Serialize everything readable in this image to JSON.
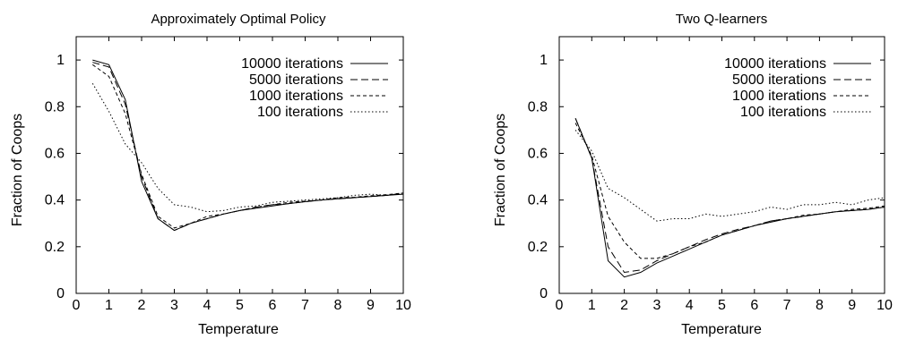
{
  "chart_data": [
    {
      "type": "line",
      "title": "Approximately Optimal Policy",
      "xlabel": "Temperature",
      "ylabel": "Fraction of Coops",
      "xlim": [
        0,
        10
      ],
      "ylim": [
        0,
        1.1
      ],
      "xticks": [
        "0",
        "1",
        "2",
        "3",
        "4",
        "5",
        "6",
        "7",
        "8",
        "9",
        "10"
      ],
      "yticks": [
        "0",
        "0.2",
        "0.4",
        "0.6",
        "0.8",
        "1"
      ],
      "grid": false,
      "legend_position": "top-right",
      "series": [
        {
          "name": "10000 iterations",
          "dash": "solid",
          "x": [
            0.5,
            1,
            1.5,
            2,
            2.5,
            3,
            3.5,
            4,
            4.5,
            5,
            5.5,
            6,
            6.5,
            7,
            7.5,
            8,
            8.5,
            9,
            9.5,
            10
          ],
          "y": [
            1.0,
            0.98,
            0.83,
            0.48,
            0.32,
            0.27,
            0.3,
            0.32,
            0.34,
            0.355,
            0.365,
            0.375,
            0.385,
            0.393,
            0.4,
            0.405,
            0.41,
            0.415,
            0.42,
            0.425
          ]
        },
        {
          "name": "5000 iterations",
          "dash": "long-dash",
          "x": [
            0.5,
            1,
            1.5,
            2,
            2.5,
            3,
            3.5,
            4,
            4.5,
            5,
            5.5,
            6,
            6.5,
            7,
            7.5,
            8,
            8.5,
            9,
            9.5,
            10
          ],
          "y": [
            0.99,
            0.97,
            0.81,
            0.5,
            0.32,
            0.27,
            0.3,
            0.32,
            0.34,
            0.355,
            0.37,
            0.38,
            0.385,
            0.393,
            0.4,
            0.405,
            0.41,
            0.415,
            0.42,
            0.428
          ]
        },
        {
          "name": "1000 iterations",
          "dash": "short-dash",
          "x": [
            0.5,
            1,
            1.5,
            2,
            2.5,
            3,
            3.5,
            4,
            4.5,
            5,
            5.5,
            6,
            6.5,
            7,
            7.5,
            8,
            8.5,
            9,
            9.5,
            10
          ],
          "y": [
            0.98,
            0.93,
            0.77,
            0.51,
            0.33,
            0.28,
            0.3,
            0.33,
            0.34,
            0.355,
            0.37,
            0.38,
            0.39,
            0.395,
            0.4,
            0.41,
            0.412,
            0.418,
            0.423,
            0.43
          ]
        },
        {
          "name": "100 iterations",
          "dash": "dotted",
          "x": [
            0.5,
            1,
            1.5,
            2,
            2.5,
            3,
            3.5,
            4,
            4.5,
            5,
            5.5,
            6,
            6.5,
            7,
            7.5,
            8,
            8.5,
            9,
            9.5,
            10
          ],
          "y": [
            0.9,
            0.78,
            0.64,
            0.56,
            0.45,
            0.38,
            0.37,
            0.35,
            0.355,
            0.37,
            0.375,
            0.39,
            0.395,
            0.4,
            0.405,
            0.41,
            0.42,
            0.425,
            0.42,
            0.43
          ]
        }
      ]
    },
    {
      "type": "line",
      "title": "Two Q-learners",
      "xlabel": "Temperature",
      "ylabel": "Fraction of Coops",
      "xlim": [
        0,
        10
      ],
      "ylim": [
        0,
        1.1
      ],
      "xticks": [
        "0",
        "1",
        "2",
        "3",
        "4",
        "5",
        "6",
        "7",
        "8",
        "9",
        "10"
      ],
      "yticks": [
        "0",
        "0.2",
        "0.4",
        "0.6",
        "0.8",
        "1"
      ],
      "grid": false,
      "legend_position": "top-right",
      "series": [
        {
          "name": "10000 iterations",
          "dash": "solid",
          "x": [
            0.5,
            1,
            1.5,
            2,
            2.5,
            3,
            3.5,
            4,
            4.5,
            5,
            5.5,
            6,
            6.5,
            7,
            7.5,
            8,
            8.5,
            9,
            9.5,
            10
          ],
          "y": [
            0.75,
            0.58,
            0.14,
            0.07,
            0.09,
            0.13,
            0.16,
            0.19,
            0.22,
            0.25,
            0.27,
            0.29,
            0.305,
            0.32,
            0.33,
            0.34,
            0.35,
            0.355,
            0.36,
            0.37
          ]
        },
        {
          "name": "5000 iterations",
          "dash": "long-dash",
          "x": [
            0.5,
            1,
            1.5,
            2,
            2.5,
            3,
            3.5,
            4,
            4.5,
            5,
            5.5,
            6,
            6.5,
            7,
            7.5,
            8,
            8.5,
            9,
            9.5,
            10
          ],
          "y": [
            0.75,
            0.58,
            0.2,
            0.09,
            0.1,
            0.14,
            0.17,
            0.2,
            0.23,
            0.255,
            0.275,
            0.29,
            0.31,
            0.32,
            0.33,
            0.34,
            0.35,
            0.355,
            0.36,
            0.37
          ]
        },
        {
          "name": "1000 iterations",
          "dash": "short-dash",
          "x": [
            0.5,
            1,
            1.5,
            2,
            2.5,
            3,
            3.5,
            4,
            4.5,
            5,
            5.5,
            6,
            6.5,
            7,
            7.5,
            8,
            8.5,
            9,
            9.5,
            10
          ],
          "y": [
            0.73,
            0.59,
            0.33,
            0.22,
            0.15,
            0.15,
            0.17,
            0.2,
            0.22,
            0.25,
            0.27,
            0.29,
            0.31,
            0.32,
            0.335,
            0.34,
            0.35,
            0.36,
            0.365,
            0.375
          ]
        },
        {
          "name": "100 iterations",
          "dash": "dotted",
          "x": [
            0.5,
            1,
            1.5,
            2,
            2.5,
            3,
            3.5,
            4,
            4.5,
            5,
            5.5,
            6,
            6.5,
            7,
            7.5,
            8,
            8.5,
            9,
            9.5,
            10
          ],
          "y": [
            0.7,
            0.61,
            0.45,
            0.41,
            0.36,
            0.31,
            0.32,
            0.32,
            0.34,
            0.33,
            0.34,
            0.35,
            0.37,
            0.36,
            0.38,
            0.38,
            0.39,
            0.38,
            0.4,
            0.41
          ]
        }
      ]
    }
  ]
}
